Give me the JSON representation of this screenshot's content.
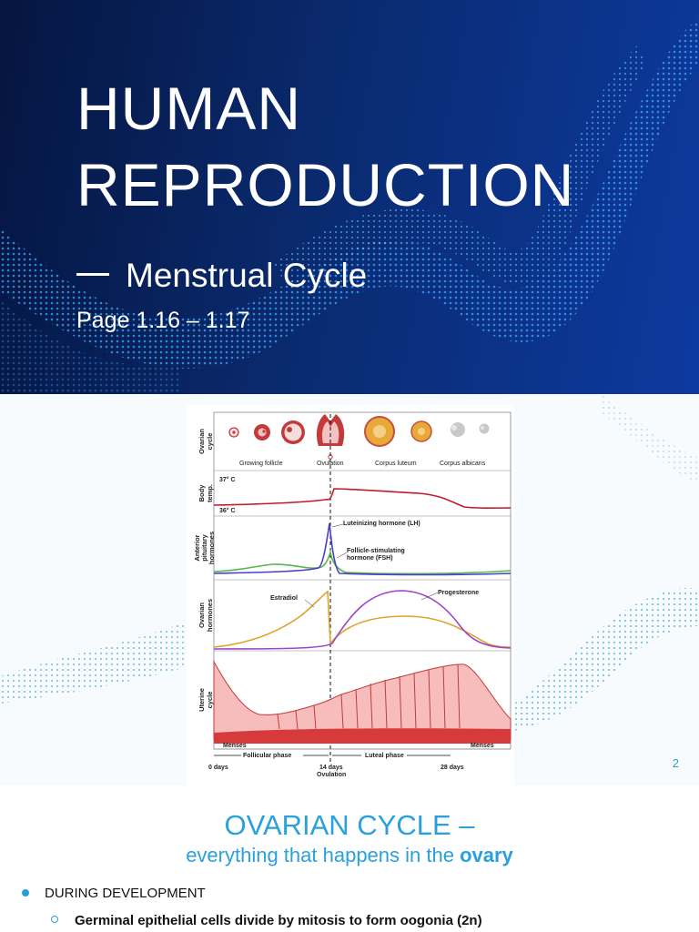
{
  "slide1": {
    "title_line1": "HUMAN",
    "title_line2": "REPRODUCTION",
    "subtitle": "Menstrual Cycle",
    "page_ref": "Page 1.16 – 1.17"
  },
  "slide2": {
    "figure": {
      "row_labels": {
        "ovarian_cycle": [
          "Ovarian",
          "cycle"
        ],
        "body_temp": [
          "Body",
          "temp."
        ],
        "pituitary": [
          "Anterior",
          "pituitary",
          "hormones"
        ],
        "ovarian_hormones": [
          "Ovarian",
          "hormones"
        ],
        "uterine": [
          "Uterine",
          "cycle"
        ]
      },
      "follicle_labels": [
        "Growing follicle",
        "Ovulation",
        "Corpus luteum",
        "Corpus albicans"
      ],
      "temp_labels": [
        "37° C",
        "36° C"
      ],
      "hormone_labels": {
        "lh": "Luteinizing hormone (LH)",
        "fsh_1": "Follicle-stimulating",
        "fsh_2": "hormone (FSH)",
        "estradiol": "Estradiol",
        "progesterone": "Progesterone"
      },
      "phase_labels": {
        "menses_left": "Menses",
        "menses_right": "Menses",
        "follicular": "Follicular phase",
        "luteal": "Luteal phase"
      },
      "day_labels": {
        "d0": "0 days",
        "d14": "14 days",
        "ovulation": "Ovulation",
        "d28": "28 days"
      }
    },
    "slide_number": "2"
  },
  "slide3": {
    "title": "OVARIAN CYCLE –",
    "subtitle_prefix": "everything that happens in the",
    "subtitle_bold": "ovary",
    "bullet1": "DURING DEVELOPMENT",
    "bullet2": "Germinal epithelial cells divide by mitosis to form oogonia (2n)"
  },
  "colors": {
    "title_bg": "#0a2a6e",
    "accent_blue": "#2aa0dc",
    "lh": "#4a3fc9",
    "fsh": "#55b84a",
    "estradiol": "#e0a22a",
    "progesterone": "#9b45c9",
    "temperature": "#c4192a",
    "uterine": "#f4a9a9"
  }
}
